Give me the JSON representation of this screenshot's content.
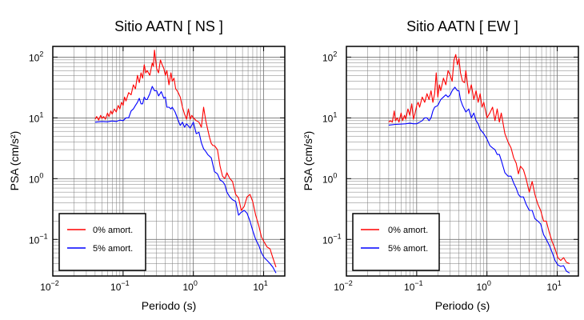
{
  "chart_data": [
    {
      "type": "line",
      "title": "Sitio AATN [ NS ]",
      "xlabel": "Periodo (s)",
      "ylabel": "PSA (cm/s²)",
      "xscale": "log",
      "yscale": "log",
      "xlim": [
        0.01,
        20
      ],
      "ylim": [
        0.025,
        150
      ],
      "xticks": [
        {
          "value": 0.01,
          "base": "10",
          "exp": "−2"
        },
        {
          "value": 0.1,
          "base": "10",
          "exp": "−1"
        },
        {
          "value": 1,
          "base": "10",
          "exp": "0"
        },
        {
          "value": 10,
          "base": "10",
          "exp": "1"
        }
      ],
      "yticks": [
        {
          "value": 0.1,
          "base": "10",
          "exp": "−1"
        },
        {
          "value": 1,
          "base": "10",
          "exp": "0"
        },
        {
          "value": 10,
          "base": "10",
          "exp": "1"
        },
        {
          "value": 100,
          "base": "10",
          "exp": "2"
        }
      ],
      "grid": true,
      "legend_position": "bottom-left",
      "series": [
        {
          "name": "0% amort.",
          "color": "#ff0000",
          "x": [
            0.04,
            0.042,
            0.045,
            0.048,
            0.05,
            0.053,
            0.056,
            0.06,
            0.063,
            0.067,
            0.07,
            0.075,
            0.08,
            0.085,
            0.09,
            0.095,
            0.1,
            0.105,
            0.11,
            0.12,
            0.13,
            0.14,
            0.15,
            0.16,
            0.17,
            0.18,
            0.19,
            0.2,
            0.21,
            0.22,
            0.24,
            0.26,
            0.27,
            0.28,
            0.29,
            0.3,
            0.32,
            0.34,
            0.36,
            0.38,
            0.4,
            0.42,
            0.45,
            0.48,
            0.5,
            0.53,
            0.56,
            0.6,
            0.65,
            0.7,
            0.75,
            0.8,
            0.85,
            0.9,
            0.95,
            1.0,
            1.1,
            1.2,
            1.3,
            1.4,
            1.5,
            1.6,
            1.7,
            1.8,
            1.9,
            2.0,
            2.2,
            2.4,
            2.6,
            2.8,
            3.0,
            3.3,
            3.6,
            4.0,
            4.4,
            4.8,
            5.3,
            5.8,
            6.4,
            7.0,
            7.7,
            8.5,
            9.3,
            10.2,
            11.2,
            12.3,
            13.5,
            15.0
          ],
          "y": [
            9.5,
            10.5,
            9.2,
            11,
            9.8,
            10.5,
            9.5,
            12,
            10.5,
            13,
            11.5,
            14,
            12.5,
            16,
            14,
            18,
            16,
            22,
            19,
            26,
            24,
            35,
            30,
            50,
            38,
            55,
            45,
            75,
            55,
            60,
            50,
            80,
            70,
            130,
            90,
            65,
            55,
            90,
            75,
            65,
            50,
            60,
            35,
            55,
            40,
            45,
            30,
            27,
            22,
            15,
            11.5,
            9.5,
            14,
            9.5,
            11,
            10,
            9,
            8.5,
            7,
            15,
            9,
            6.5,
            4.8,
            3.8,
            3.5,
            3.5,
            3.0,
            1.6,
            1.1,
            1.0,
            1.25,
            1.0,
            0.9,
            0.55,
            0.48,
            0.3,
            0.35,
            0.5,
            0.55,
            0.42,
            0.25,
            0.17,
            0.11,
            0.09,
            0.075,
            0.07,
            0.05,
            0.035
          ]
        },
        {
          "name": "5% amort.",
          "color": "#0000ff",
          "x": [
            0.04,
            0.05,
            0.06,
            0.07,
            0.08,
            0.09,
            0.1,
            0.11,
            0.12,
            0.13,
            0.14,
            0.15,
            0.16,
            0.17,
            0.18,
            0.19,
            0.2,
            0.21,
            0.22,
            0.24,
            0.26,
            0.28,
            0.3,
            0.32,
            0.35,
            0.38,
            0.4,
            0.42,
            0.45,
            0.48,
            0.5,
            0.55,
            0.6,
            0.65,
            0.7,
            0.75,
            0.8,
            0.9,
            1.0,
            1.1,
            1.2,
            1.3,
            1.4,
            1.5,
            1.6,
            1.8,
            2.0,
            2.2,
            2.4,
            2.6,
            2.8,
            3.0,
            3.3,
            3.6,
            4.0,
            4.4,
            4.8,
            5.3,
            5.8,
            6.4,
            7.0,
            7.7,
            8.5,
            9.3,
            10.2,
            11.2,
            12.3,
            13.5,
            15.0
          ],
          "y": [
            8.5,
            8.7,
            8.6,
            8.9,
            8.7,
            9.2,
            9.0,
            10,
            10,
            13,
            14,
            16,
            18,
            21,
            17,
            17,
            22,
            20,
            20,
            25,
            33,
            28,
            28,
            23,
            27,
            21,
            22,
            15,
            15,
            14,
            15,
            12.5,
            9.5,
            7.5,
            8.5,
            7.0,
            8.0,
            6.8,
            8.5,
            5.5,
            5.8,
            3.9,
            3.1,
            2.8,
            2.5,
            2.2,
            1.3,
            1.2,
            0.95,
            0.9,
            0.8,
            0.6,
            0.5,
            0.45,
            0.42,
            0.25,
            0.28,
            0.3,
            0.27,
            0.2,
            0.14,
            0.1,
            0.08,
            0.06,
            0.05,
            0.045,
            0.04,
            0.035,
            0.028
          ]
        }
      ]
    },
    {
      "type": "line",
      "title": "Sitio AATN [ EW ]",
      "xlabel": "Periodo (s)",
      "ylabel": "PSA (cm/s²)",
      "xscale": "log",
      "yscale": "log",
      "xlim": [
        0.01,
        20
      ],
      "ylim": [
        0.025,
        150
      ],
      "xticks": [
        {
          "value": 0.01,
          "base": "10",
          "exp": "−2"
        },
        {
          "value": 0.1,
          "base": "10",
          "exp": "−1"
        },
        {
          "value": 1,
          "base": "10",
          "exp": "0"
        },
        {
          "value": 10,
          "base": "10",
          "exp": "1"
        }
      ],
      "yticks": [
        {
          "value": 0.1,
          "base": "10",
          "exp": "−1"
        },
        {
          "value": 1,
          "base": "10",
          "exp": "0"
        },
        {
          "value": 10,
          "base": "10",
          "exp": "1"
        },
        {
          "value": 100,
          "base": "10",
          "exp": "2"
        }
      ],
      "grid": true,
      "legend_position": "bottom-left",
      "series": [
        {
          "name": "0% amort.",
          "color": "#ff0000",
          "x": [
            0.04,
            0.042,
            0.045,
            0.048,
            0.05,
            0.053,
            0.056,
            0.06,
            0.063,
            0.067,
            0.07,
            0.075,
            0.08,
            0.085,
            0.09,
            0.095,
            0.1,
            0.105,
            0.11,
            0.12,
            0.13,
            0.14,
            0.15,
            0.16,
            0.17,
            0.18,
            0.19,
            0.2,
            0.21,
            0.22,
            0.24,
            0.26,
            0.28,
            0.3,
            0.32,
            0.34,
            0.36,
            0.38,
            0.4,
            0.42,
            0.45,
            0.48,
            0.5,
            0.55,
            0.6,
            0.65,
            0.7,
            0.75,
            0.8,
            0.85,
            0.9,
            1.0,
            1.1,
            1.2,
            1.3,
            1.4,
            1.5,
            1.6,
            1.8,
            2.0,
            2.2,
            2.4,
            2.6,
            2.8,
            3.0,
            3.3,
            3.6,
            4.0,
            4.4,
            4.8,
            5.3,
            5.8,
            6.4,
            7.0,
            7.7,
            8.5,
            9.3,
            10.2,
            11.2,
            12.3,
            13.5,
            15.0
          ],
          "y": [
            8.5,
            9,
            8.5,
            13,
            9,
            10,
            8.5,
            12,
            9,
            11,
            9.5,
            14,
            11,
            17,
            9.5,
            12,
            16,
            18,
            15,
            22,
            18,
            25,
            20,
            28,
            18,
            25,
            55,
            22,
            35,
            28,
            45,
            35,
            60,
            50,
            40,
            90,
            110,
            75,
            95,
            55,
            40,
            38,
            60,
            25,
            35,
            20,
            28,
            18,
            25,
            15,
            18,
            10,
            12,
            15,
            9,
            14,
            8.5,
            12,
            5.5,
            4.0,
            3.2,
            2.2,
            1.8,
            1.2,
            1.6,
            1.4,
            1.0,
            0.6,
            0.9,
            0.55,
            0.38,
            0.3,
            0.2,
            0.2,
            0.13,
            0.09,
            0.07,
            0.05,
            0.045,
            0.05,
            0.042,
            0.04
          ]
        },
        {
          "name": "5% amort.",
          "color": "#0000ff",
          "x": [
            0.04,
            0.05,
            0.06,
            0.07,
            0.08,
            0.09,
            0.1,
            0.11,
            0.12,
            0.13,
            0.14,
            0.15,
            0.16,
            0.17,
            0.18,
            0.2,
            0.22,
            0.24,
            0.26,
            0.28,
            0.3,
            0.32,
            0.35,
            0.38,
            0.4,
            0.42,
            0.45,
            0.5,
            0.55,
            0.6,
            0.65,
            0.7,
            0.75,
            0.8,
            0.9,
            1.0,
            1.1,
            1.2,
            1.3,
            1.4,
            1.5,
            1.6,
            1.8,
            2.0,
            2.2,
            2.4,
            2.6,
            2.8,
            3.0,
            3.3,
            3.6,
            4.0,
            4.4,
            4.8,
            5.3,
            5.8,
            6.4,
            7.0,
            7.7,
            8.5,
            9.3,
            10.2,
            11.2,
            12.3,
            13.5,
            15.0
          ],
          "y": [
            7.6,
            7.8,
            7.9,
            8.0,
            8.2,
            8.0,
            8.0,
            8.5,
            9.0,
            10,
            10,
            9.0,
            10,
            13,
            15,
            16,
            20,
            22,
            24,
            22,
            24,
            28,
            32,
            28,
            28,
            20,
            16,
            12.5,
            14,
            10,
            12,
            9.0,
            8.0,
            6.5,
            5.5,
            4.5,
            3.5,
            3.2,
            3.0,
            2.5,
            2.5,
            2.0,
            1.25,
            1.1,
            1.1,
            0.85,
            0.7,
            0.55,
            0.5,
            0.5,
            0.38,
            0.3,
            0.3,
            0.22,
            0.2,
            0.18,
            0.12,
            0.1,
            0.08,
            0.06,
            0.045,
            0.038,
            0.036,
            0.037,
            0.03,
            0.028
          ]
        }
      ]
    }
  ]
}
